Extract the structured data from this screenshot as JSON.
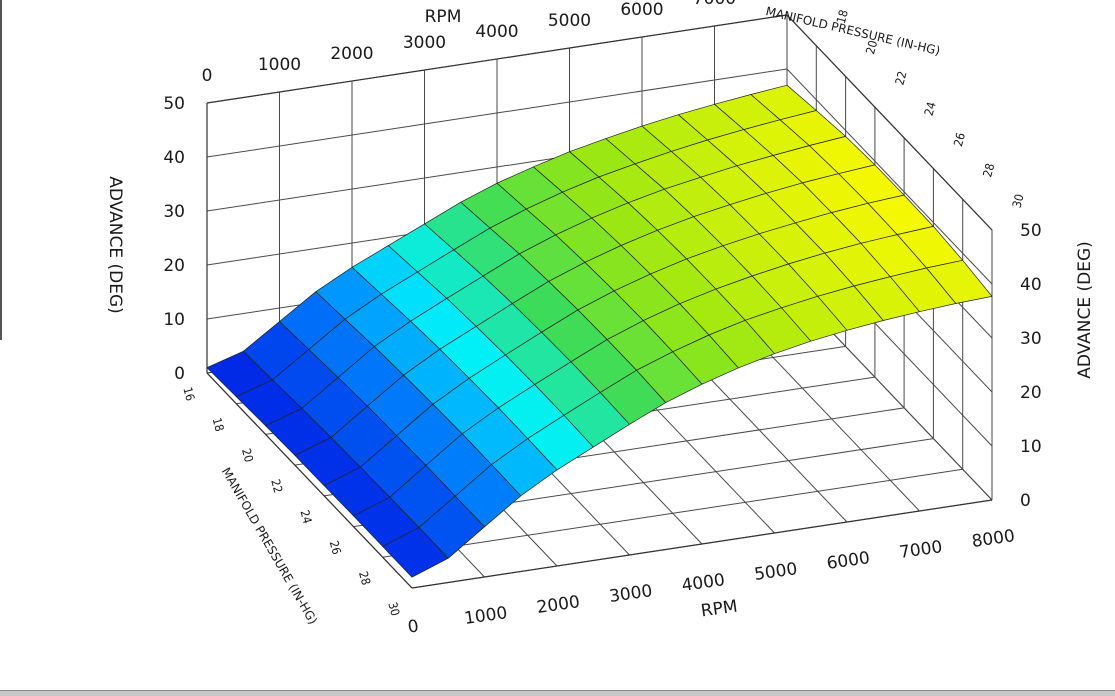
{
  "chart_data": {
    "type": "surface3d",
    "title": "",
    "x_axis": {
      "label": "RPM",
      "ticks": [
        0,
        1000,
        2000,
        3000,
        4000,
        5000,
        6000,
        7000,
        8000
      ],
      "range": [
        0,
        8000
      ]
    },
    "y_axis": {
      "label": "MANIFOLD PRESSURE (IN-HG)",
      "ticks": [
        16,
        18,
        20,
        22,
        24,
        26,
        28,
        30
      ],
      "range": [
        16,
        30
      ]
    },
    "z_axis": {
      "label": "ADVANCE (DEG)",
      "ticks": [
        0,
        10,
        20,
        30,
        40,
        50
      ],
      "range": [
        0,
        50
      ]
    },
    "grid": true,
    "surface": {
      "rpm": [
        0,
        500,
        1000,
        1500,
        2000,
        2500,
        3000,
        3500,
        4000,
        4500,
        5000,
        5500,
        6000,
        6500,
        7000,
        7500,
        8000
      ],
      "manifold_pressure": [
        16,
        18,
        20,
        22,
        24,
        26,
        28,
        30
      ],
      "advance": [
        [
          1.0,
          3.0,
          7.5,
          12.0,
          15.5,
          18.5,
          21.5,
          24.5,
          27.0,
          29.0,
          30.8,
          32.2,
          33.5,
          34.6,
          35.5,
          36.3,
          37.0
        ],
        [
          1.3,
          3.4,
          8.0,
          12.6,
          16.2,
          19.3,
          22.4,
          25.4,
          27.9,
          30.0,
          31.8,
          33.2,
          34.5,
          35.6,
          36.5,
          37.3,
          38.0
        ],
        [
          1.6,
          3.8,
          8.5,
          13.2,
          16.9,
          20.1,
          23.2,
          26.3,
          28.8,
          30.9,
          32.7,
          34.2,
          35.4,
          36.5,
          37.4,
          38.2,
          38.9
        ],
        [
          1.8,
          4.1,
          8.9,
          13.6,
          17.4,
          20.6,
          23.8,
          26.9,
          29.4,
          31.5,
          33.3,
          34.8,
          36.0,
          37.1,
          38.0,
          38.7,
          39.3
        ],
        [
          1.9,
          4.3,
          9.1,
          13.9,
          17.7,
          21.0,
          24.2,
          27.3,
          29.8,
          31.9,
          33.7,
          35.1,
          36.3,
          37.3,
          38.2,
          38.9,
          39.4
        ],
        [
          2.0,
          4.4,
          9.3,
          14.1,
          17.9,
          21.2,
          24.4,
          27.5,
          30.0,
          32.1,
          33.8,
          35.2,
          36.4,
          37.4,
          38.2,
          38.8,
          39.3
        ],
        [
          2.0,
          4.5,
          9.3,
          14.1,
          17.9,
          21.2,
          24.4,
          27.5,
          29.9,
          32.0,
          33.7,
          35.0,
          36.1,
          37.0,
          37.7,
          38.3,
          38.7
        ],
        [
          2.0,
          4.5,
          9.3,
          14.0,
          17.8,
          21.0,
          24.2,
          27.2,
          29.6,
          31.6,
          33.2,
          34.5,
          35.5,
          36.3,
          36.9,
          37.4,
          37.7
        ]
      ]
    }
  }
}
